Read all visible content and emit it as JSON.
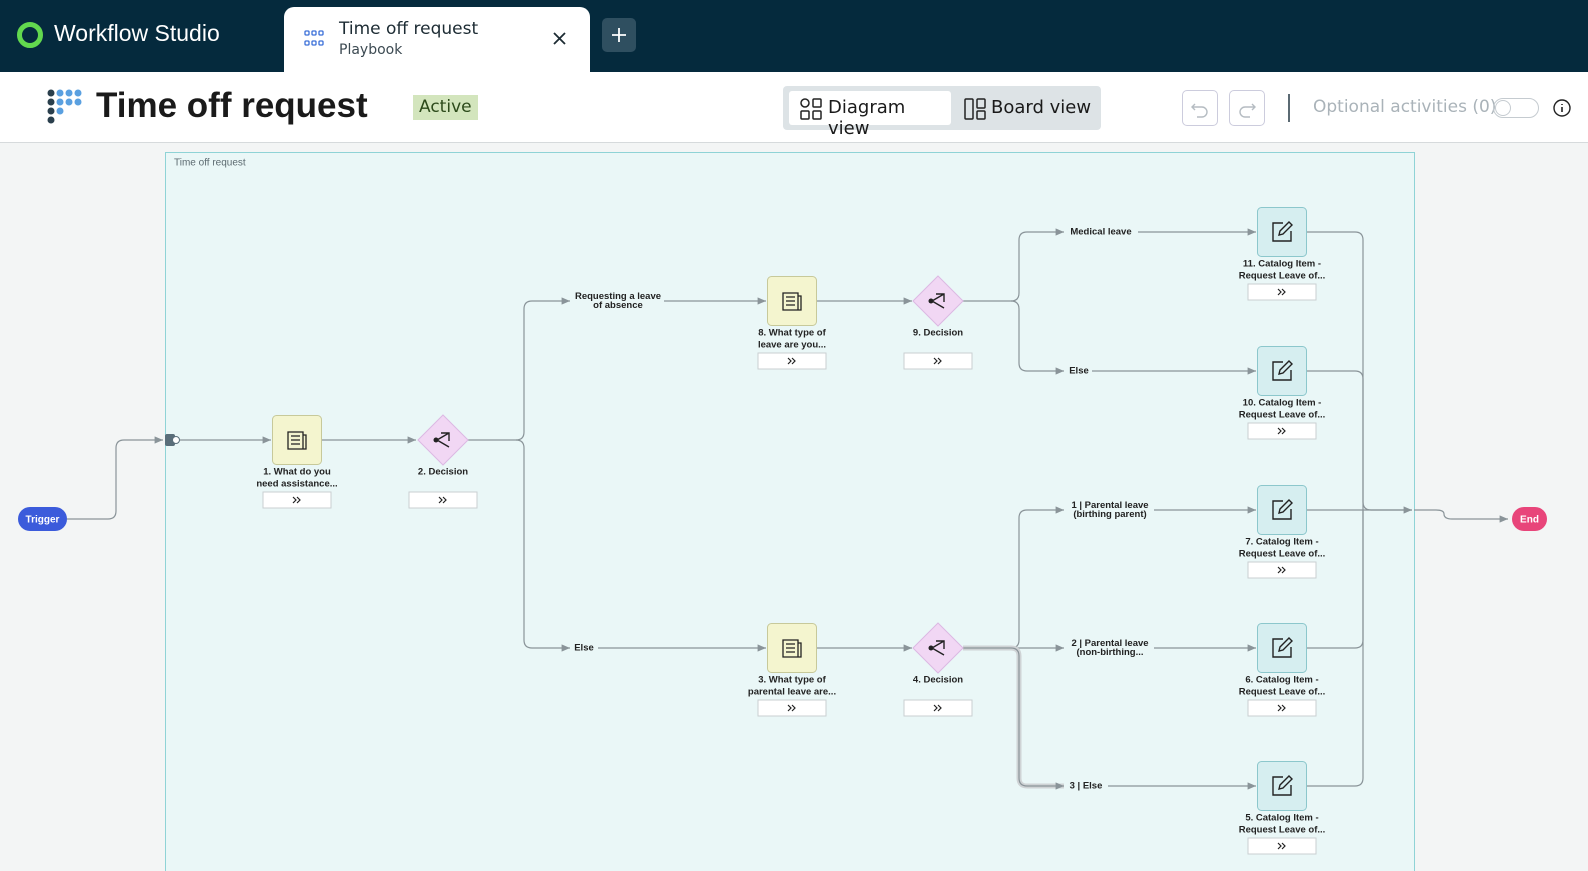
{
  "app": {
    "name": "Workflow Studio"
  },
  "tabs": [
    {
      "title": "Time off request",
      "subtitle": "Playbook"
    }
  ],
  "header": {
    "title": "Time off request",
    "status": "Active",
    "views": [
      "Diagram view",
      "Board view"
    ],
    "optional_activities": "Optional activities (0)"
  },
  "canvas": {
    "group": "Time off request",
    "trigger": "Trigger",
    "end": "End",
    "nodes": [
      {
        "kind": "form",
        "lines": [
          "1. What do you",
          "need assistance..."
        ]
      },
      {
        "kind": "decision",
        "lines": [
          "2. Decision"
        ]
      },
      {
        "kind": "form",
        "lines": [
          "8. What type of",
          "leave are you..."
        ]
      },
      {
        "kind": "decision",
        "lines": [
          "9. Decision"
        ]
      },
      {
        "kind": "form",
        "lines": [
          "3. What type of",
          "parental leave are..."
        ]
      },
      {
        "kind": "decision",
        "lines": [
          "4. Decision"
        ]
      },
      {
        "kind": "catalog",
        "lines": [
          "11. Catalog Item -",
          "Request Leave of..."
        ]
      },
      {
        "kind": "catalog",
        "lines": [
          "10. Catalog Item -",
          "Request Leave of..."
        ]
      },
      {
        "kind": "catalog",
        "lines": [
          "7. Catalog Item -",
          "Request Leave of..."
        ]
      },
      {
        "kind": "catalog",
        "lines": [
          "6. Catalog Item -",
          "Request Leave of..."
        ]
      },
      {
        "kind": "catalog",
        "lines": [
          "5. Catalog Item -",
          "Request Leave of..."
        ]
      }
    ],
    "branches": [
      {
        "lines": [
          "Requesting a leave",
          "of absence"
        ]
      },
      {
        "lines": [
          "Else"
        ]
      },
      {
        "lines": [
          "Medical leave"
        ]
      },
      {
        "lines": [
          "Else"
        ]
      },
      {
        "lines": [
          "1 | Parental leave",
          "(birthing parent)"
        ]
      },
      {
        "lines": [
          "2 | Parental leave",
          "(non-birthing..."
        ]
      },
      {
        "lines": [
          "3 | Else"
        ]
      }
    ]
  }
}
